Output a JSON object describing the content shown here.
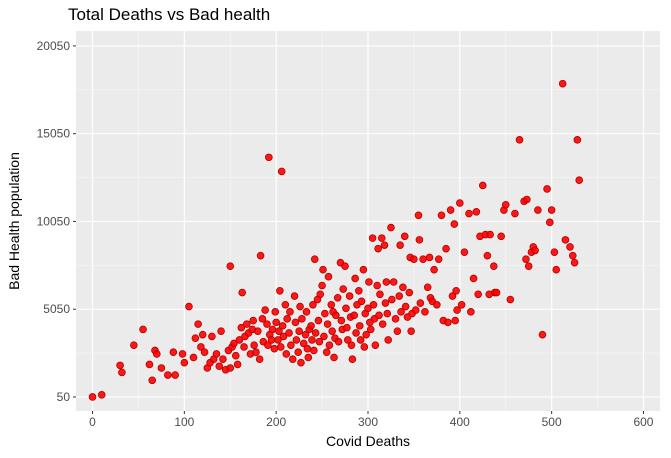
{
  "chart_data": {
    "type": "scatter",
    "title": "Total Deaths vs Bad health",
    "xlabel": "Covid Deaths",
    "ylabel": "Bad Health population",
    "xlim": [
      -18,
      618
    ],
    "ylim": [
      -750,
      20900
    ],
    "x_ticks": [
      0,
      100,
      200,
      300,
      400,
      500,
      600
    ],
    "y_ticks": [
      50,
      5050,
      10050,
      15050,
      20050
    ],
    "grid": true,
    "point_color": "#ff0000",
    "point_stroke": "#b30000",
    "panel_background": "#ebebeb",
    "points": [
      [
        0,
        50
      ],
      [
        10,
        170
      ],
      [
        30,
        1850
      ],
      [
        32,
        1450
      ],
      [
        45,
        3000
      ],
      [
        55,
        3900
      ],
      [
        62,
        1900
      ],
      [
        65,
        1000
      ],
      [
        68,
        2700
      ],
      [
        70,
        2500
      ],
      [
        75,
        1700
      ],
      [
        82,
        1300
      ],
      [
        88,
        2600
      ],
      [
        90,
        1300
      ],
      [
        98,
        2500
      ],
      [
        100,
        2000
      ],
      [
        105,
        5200
      ],
      [
        110,
        2300
      ],
      [
        112,
        3400
      ],
      [
        115,
        4200
      ],
      [
        118,
        2900
      ],
      [
        120,
        3600
      ],
      [
        122,
        2600
      ],
      [
        125,
        1700
      ],
      [
        128,
        2000
      ],
      [
        130,
        3500
      ],
      [
        132,
        2200
      ],
      [
        135,
        2500
      ],
      [
        138,
        1800
      ],
      [
        140,
        3800
      ],
      [
        142,
        2200
      ],
      [
        145,
        1600
      ],
      [
        148,
        2700
      ],
      [
        150,
        7500
      ],
      [
        150,
        1700
      ],
      [
        152,
        2900
      ],
      [
        154,
        3100
      ],
      [
        156,
        2400
      ],
      [
        158,
        1900
      ],
      [
        160,
        3300
      ],
      [
        162,
        4000
      ],
      [
        163,
        6000
      ],
      [
        165,
        2900
      ],
      [
        166,
        3500
      ],
      [
        168,
        4200
      ],
      [
        170,
        3700
      ],
      [
        172,
        2500
      ],
      [
        174,
        3900
      ],
      [
        175,
        4400
      ],
      [
        176,
        3000
      ],
      [
        178,
        2600
      ],
      [
        180,
        3800
      ],
      [
        182,
        2200
      ],
      [
        183,
        8100
      ],
      [
        185,
        4500
      ],
      [
        186,
        3200
      ],
      [
        188,
        5000
      ],
      [
        190,
        4200
      ],
      [
        191,
        3000
      ],
      [
        192,
        13700
      ],
      [
        193,
        3600
      ],
      [
        195,
        3300
      ],
      [
        196,
        3900
      ],
      [
        198,
        2800
      ],
      [
        199,
        4900
      ],
      [
        200,
        4300
      ],
      [
        202,
        3300
      ],
      [
        203,
        3800
      ],
      [
        204,
        6100
      ],
      [
        205,
        2900
      ],
      [
        206,
        12900
      ],
      [
        207,
        4100
      ],
      [
        208,
        3500
      ],
      [
        210,
        5300
      ],
      [
        211,
        2500
      ],
      [
        212,
        4500
      ],
      [
        214,
        3700
      ],
      [
        215,
        4900
      ],
      [
        216,
        3000
      ],
      [
        218,
        2200
      ],
      [
        220,
        5800
      ],
      [
        221,
        4300
      ],
      [
        222,
        3300
      ],
      [
        224,
        2600
      ],
      [
        225,
        3800
      ],
      [
        226,
        5200
      ],
      [
        227,
        2000
      ],
      [
        228,
        4500
      ],
      [
        230,
        3100
      ],
      [
        232,
        3600
      ],
      [
        233,
        4900
      ],
      [
        234,
        2800
      ],
      [
        235,
        2300
      ],
      [
        236,
        3900
      ],
      [
        238,
        4100
      ],
      [
        239,
        3300
      ],
      [
        240,
        5300
      ],
      [
        241,
        2700
      ],
      [
        242,
        7900
      ],
      [
        243,
        3700
      ],
      [
        245,
        5600
      ],
      [
        246,
        4400
      ],
      [
        247,
        3200
      ],
      [
        248,
        5900
      ],
      [
        250,
        6400
      ],
      [
        251,
        7300
      ],
      [
        252,
        3500
      ],
      [
        253,
        4800
      ],
      [
        255,
        2600
      ],
      [
        256,
        4200
      ],
      [
        257,
        6900
      ],
      [
        258,
        3000
      ],
      [
        260,
        5300
      ],
      [
        261,
        3800
      ],
      [
        262,
        4900
      ],
      [
        263,
        2300
      ],
      [
        264,
        3400
      ],
      [
        265,
        4700
      ],
      [
        267,
        5700
      ],
      [
        268,
        3200
      ],
      [
        270,
        7700
      ],
      [
        271,
        4400
      ],
      [
        272,
        3900
      ],
      [
        273,
        6200
      ],
      [
        275,
        7500
      ],
      [
        276,
        5100
      ],
      [
        277,
        4000
      ],
      [
        278,
        3300
      ],
      [
        280,
        5800
      ],
      [
        281,
        4600
      ],
      [
        282,
        3000
      ],
      [
        283,
        2200
      ],
      [
        285,
        4700
      ],
      [
        286,
        6800
      ],
      [
        287,
        3700
      ],
      [
        288,
        5300
      ],
      [
        290,
        6100
      ],
      [
        291,
        4100
      ],
      [
        292,
        3300
      ],
      [
        293,
        5500
      ],
      [
        295,
        7300
      ],
      [
        296,
        2900
      ],
      [
        297,
        4800
      ],
      [
        298,
        3600
      ],
      [
        300,
        5100
      ],
      [
        301,
        6600
      ],
      [
        302,
        4300
      ],
      [
        303,
        3900
      ],
      [
        305,
        9100
      ],
      [
        306,
        5300
      ],
      [
        307,
        4500
      ],
      [
        308,
        3000
      ],
      [
        310,
        6400
      ],
      [
        311,
        8500
      ],
      [
        312,
        4700
      ],
      [
        313,
        5900
      ],
      [
        315,
        9100
      ],
      [
        316,
        4200
      ],
      [
        318,
        8700
      ],
      [
        319,
        5400
      ],
      [
        320,
        6600
      ],
      [
        321,
        4800
      ],
      [
        322,
        3300
      ],
      [
        325,
        9700
      ],
      [
        326,
        5600
      ],
      [
        328,
        6600
      ],
      [
        330,
        4500
      ],
      [
        332,
        3800
      ],
      [
        334,
        5800
      ],
      [
        335,
        8700
      ],
      [
        336,
        4900
      ],
      [
        338,
        6300
      ],
      [
        340,
        9200
      ],
      [
        341,
        5200
      ],
      [
        343,
        4600
      ],
      [
        345,
        6000
      ],
      [
        346,
        8000
      ],
      [
        347,
        3800
      ],
      [
        348,
        4800
      ],
      [
        350,
        7900
      ],
      [
        352,
        5000
      ],
      [
        355,
        10400
      ],
      [
        356,
        9000
      ],
      [
        357,
        5400
      ],
      [
        360,
        7900
      ],
      [
        362,
        4900
      ],
      [
        365,
        6300
      ],
      [
        367,
        8000
      ],
      [
        368,
        5700
      ],
      [
        370,
        5500
      ],
      [
        372,
        7300
      ],
      [
        375,
        5300
      ],
      [
        377,
        7900
      ],
      [
        380,
        10400
      ],
      [
        382,
        4400
      ],
      [
        385,
        8500
      ],
      [
        387,
        4300
      ],
      [
        390,
        10700
      ],
      [
        392,
        5800
      ],
      [
        394,
        9900
      ],
      [
        395,
        4400
      ],
      [
        396,
        6100
      ],
      [
        397,
        5000
      ],
      [
        400,
        11100
      ],
      [
        402,
        5300
      ],
      [
        405,
        8300
      ],
      [
        410,
        10500
      ],
      [
        412,
        4900
      ],
      [
        415,
        6800
      ],
      [
        418,
        10600
      ],
      [
        420,
        5900
      ],
      [
        422,
        9200
      ],
      [
        425,
        12100
      ],
      [
        428,
        9300
      ],
      [
        430,
        8100
      ],
      [
        432,
        5900
      ],
      [
        433,
        9300
      ],
      [
        437,
        7500
      ],
      [
        438,
        6000
      ],
      [
        440,
        6000
      ],
      [
        445,
        9200
      ],
      [
        448,
        10700
      ],
      [
        450,
        11000
      ],
      [
        455,
        5600
      ],
      [
        460,
        10500
      ],
      [
        465,
        14700
      ],
      [
        470,
        11200
      ],
      [
        472,
        7900
      ],
      [
        473,
        11300
      ],
      [
        475,
        7500
      ],
      [
        478,
        8300
      ],
      [
        480,
        8600
      ],
      [
        482,
        8400
      ],
      [
        485,
        10700
      ],
      [
        490,
        3600
      ],
      [
        495,
        11900
      ],
      [
        498,
        10000
      ],
      [
        500,
        10700
      ],
      [
        503,
        8300
      ],
      [
        505,
        7300
      ],
      [
        512,
        17900
      ],
      [
        515,
        9000
      ],
      [
        520,
        8600
      ],
      [
        523,
        8100
      ],
      [
        525,
        7700
      ],
      [
        528,
        14700
      ],
      [
        530,
        12400
      ]
    ]
  }
}
